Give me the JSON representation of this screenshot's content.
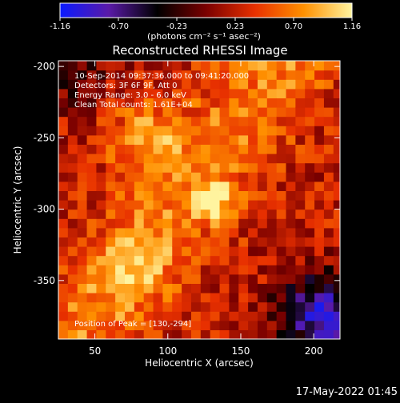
{
  "chart_data": {
    "type": "heatmap",
    "title": "Reconstructed RHESSI Image",
    "xlabel": "Heliocentric X (arcsec)",
    "ylabel": "Heliocentric Y (arcsec)",
    "xlim": [
      25,
      218
    ],
    "ylim": [
      -391,
      -196
    ],
    "x_ticks": [
      50,
      100,
      150,
      200
    ],
    "y_ticks": [
      -200,
      -250,
      -300,
      -350
    ],
    "colorbar": {
      "min": -1.16,
      "max": 1.16,
      "ticks": [
        "-1.16",
        "-0.70",
        "-0.23",
        "0.23",
        "0.70",
        "1.16"
      ],
      "unit_label": "(photons cm⁻² s⁻¹ asec⁻²)",
      "colors": [
        "#0a1aff",
        "#5a1aa8",
        "#000000",
        "#7a0000",
        "#e83000",
        "#ff9000",
        "#fff4a0"
      ]
    },
    "annotations": {
      "time": "10-Sep-2014 09:37:36.000 to 09:41:20.000",
      "detectors": "Detectors: 3F 6F 9F, Att 0",
      "energy": "Energy Range: 3.0 - 6.0 keV",
      "clean": "Clean    Total counts: 1.61E+04",
      "peak": "Position of Peak = [130,-294]"
    },
    "peak": {
      "x": 130,
      "y": -294
    },
    "features": [
      {
        "desc": "upper-left bright arc",
        "x": 85,
        "y": -250,
        "value": 0.85
      },
      {
        "desc": "central bright kernel (peak)",
        "x": 130,
        "y": -294,
        "value": 1.16
      },
      {
        "desc": "lower-left arc",
        "x": 75,
        "y": -340,
        "value": 0.6
      },
      {
        "desc": "lower-right dark region",
        "x": 205,
        "y": -375,
        "value": -1.0
      },
      {
        "desc": "upper-left dark corner",
        "x": 30,
        "y": -200,
        "value": -0.3
      }
    ]
  },
  "footer": {
    "date": "17-May-2022 01:45"
  }
}
